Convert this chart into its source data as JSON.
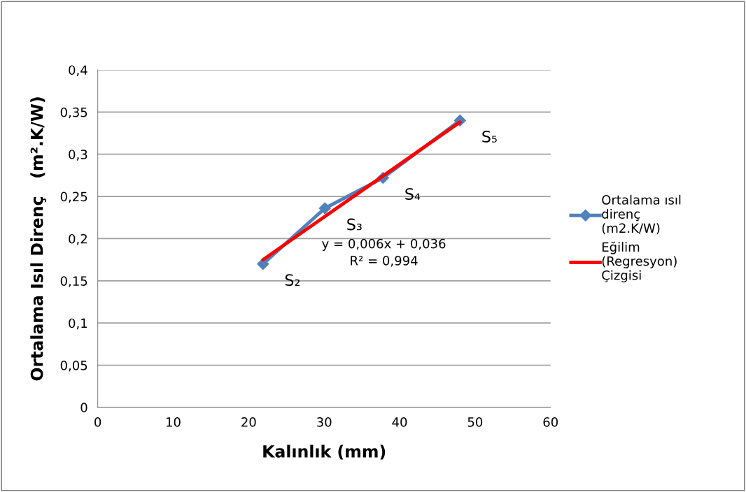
{
  "chart_data": {
    "type": "line",
    "xlabel": "Kalınlık (mm)",
    "ylabel": "Ortalama Isıl Direnç   (m².K/W)",
    "xlim": [
      0,
      60
    ],
    "xticks": [
      0,
      10,
      20,
      30,
      40,
      50,
      60
    ],
    "ylim": [
      0,
      0.4
    ],
    "yticks": [
      0,
      {
        "value": 0.05,
        "label": "0,05"
      },
      {
        "value": 0.1,
        "label": "0,1"
      },
      {
        "value": 0.15,
        "label": "0,15"
      },
      {
        "value": 0.2,
        "label": "0,2"
      },
      {
        "value": 0.25,
        "label": "0,25"
      },
      {
        "value": 0.3,
        "label": "0,3"
      },
      {
        "value": 0.35,
        "label": "0,35"
      },
      {
        "value": 0.4,
        "label": "0,4"
      }
    ],
    "grid": "y",
    "legend": "right",
    "series": [
      {
        "name": "Ortalama ısıl direnç (m2.K/W)",
        "color": "#4f81bd",
        "x": [
          21.9,
          30.1,
          37.8,
          48.0
        ],
        "values": [
          0.17,
          0.236,
          0.272,
          0.34
        ],
        "marker": "diamond"
      },
      {
        "name": "Eğilim (Regresyon) Çizgisi",
        "color": "#ff0000",
        "x": [
          21.9,
          48.0
        ],
        "values": [
          0.175,
          0.338
        ],
        "marker": "none"
      }
    ],
    "annotations": [
      {
        "text": "S₂",
        "x": 21.9,
        "y": 0.17
      },
      {
        "text": "S₃",
        "x": 30.1,
        "y": 0.236
      },
      {
        "text": "S₄",
        "x": 37.8,
        "y": 0.272
      },
      {
        "text": "S₅",
        "x": 48.0,
        "y": 0.34
      },
      "y = 0,006x + 0,036\nR² = 0,994"
    ]
  }
}
